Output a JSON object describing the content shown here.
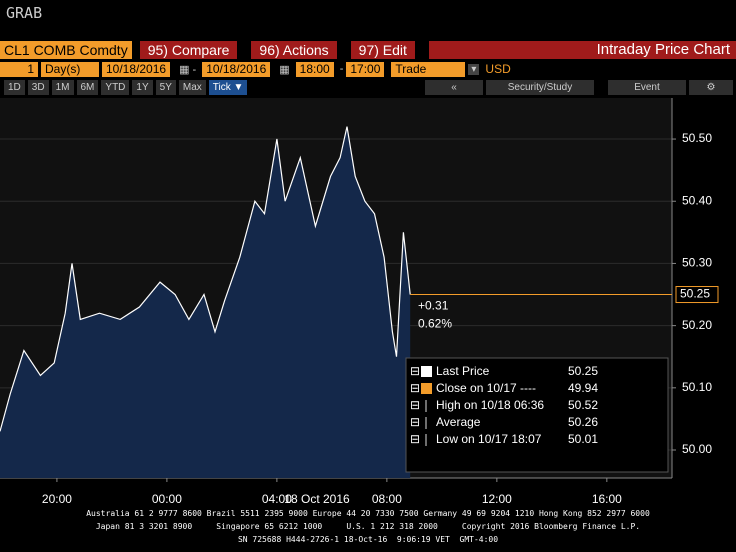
{
  "header": {
    "title": "GRAB"
  },
  "toolbar": {
    "ticker": "CL1 COMB Comdty",
    "buttons": [
      "95) Compare",
      "96) Actions",
      "97) Edit"
    ],
    "panel_title": "Intraday Price Chart"
  },
  "params": {
    "count": "1",
    "unit": "Day(s)",
    "start_date": "10/18/2016",
    "end_date": "10/18/2016",
    "start_time": "18:00",
    "end_time": "17:00",
    "field": "Trade",
    "currency": "USD"
  },
  "ranges": [
    "1D",
    "3D",
    "1M",
    "6M",
    "YTD",
    "1Y",
    "5Y",
    "Max",
    "Tick ▼"
  ],
  "tools": [
    "Security/Study",
    "Event"
  ],
  "chart_data": {
    "type": "area",
    "x": [
      17.93,
      18.3,
      18.8,
      19.4,
      19.9,
      20.3,
      20.55,
      20.85,
      21.55,
      22.3,
      23.0,
      23.75,
      24.3,
      24.8,
      25.35,
      25.75,
      26.1,
      26.65,
      27.2,
      27.55,
      28.0,
      28.3,
      28.85,
      29.4,
      29.95,
      30.3,
      30.55,
      30.85,
      31.2,
      31.55,
      31.9,
      32.2,
      32.35,
      32.6,
      32.85
    ],
    "series": [
      {
        "name": "Last Price",
        "color": "#ffffff",
        "values": [
          50.03,
          50.09,
          50.16,
          50.12,
          50.14,
          50.22,
          50.3,
          50.21,
          50.22,
          50.21,
          50.23,
          50.27,
          50.25,
          50.21,
          50.25,
          50.19,
          50.24,
          50.31,
          50.4,
          50.38,
          50.5,
          50.4,
          50.47,
          50.36,
          50.44,
          50.47,
          50.52,
          50.44,
          50.4,
          50.38,
          50.31,
          50.19,
          50.15,
          50.35,
          50.25
        ]
      }
    ],
    "xlim": [
      17.93,
      42.37
    ],
    "xticks": [
      {
        "value": 20,
        "label": "20:00"
      },
      {
        "value": 24,
        "label": "00:00"
      },
      {
        "value": 28,
        "label": "04:00"
      },
      {
        "value": 32,
        "label": "08:00"
      },
      {
        "value": 36,
        "label": "12:00"
      },
      {
        "value": 40,
        "label": "16:00"
      }
    ],
    "xlabel": "18 Oct 2016",
    "ylim": [
      49.955,
      50.566
    ],
    "yticks": [
      {
        "value": 50.0,
        "label": "50.00"
      },
      {
        "value": 50.1,
        "label": "50.10"
      },
      {
        "value": 50.2,
        "label": "50.20"
      },
      {
        "value": 50.3,
        "label": "50.30"
      },
      {
        "value": 50.4,
        "label": "50.40"
      },
      {
        "value": 50.5,
        "label": "50.50"
      }
    ],
    "grid": true,
    "fill_color": "#14284a",
    "last_color": "#f39c2a",
    "annotations": [
      "+0.31",
      "0.62%"
    ],
    "legend": [
      {
        "label": "Last Price",
        "value": 50.25,
        "color": "#ffffff"
      },
      {
        "label": "Close on 10/17 ----",
        "value": 49.94,
        "color": "#f39c2a"
      },
      {
        "label": "High on 10/18 06:36",
        "value": 50.52
      },
      {
        "label": "Average",
        "value": 50.26
      },
      {
        "label": "Low on 10/17 18:07",
        "value": 50.01
      }
    ]
  },
  "footer": [
    "Australia 61 2 9777 8600 Brazil 5511 2395 9000 Europe 44 20 7330 7500 Germany 49 69 9204 1210 Hong Kong 852 2977 6000",
    "Japan 81 3 3201 8900     Singapore 65 6212 1000     U.S. 1 212 318 2000     Copyright 2016 Bloomberg Finance L.P.",
    "SN 725688 H444-2726-1 18-Oct-16  9:06:19 VET  GMT-4:00"
  ]
}
